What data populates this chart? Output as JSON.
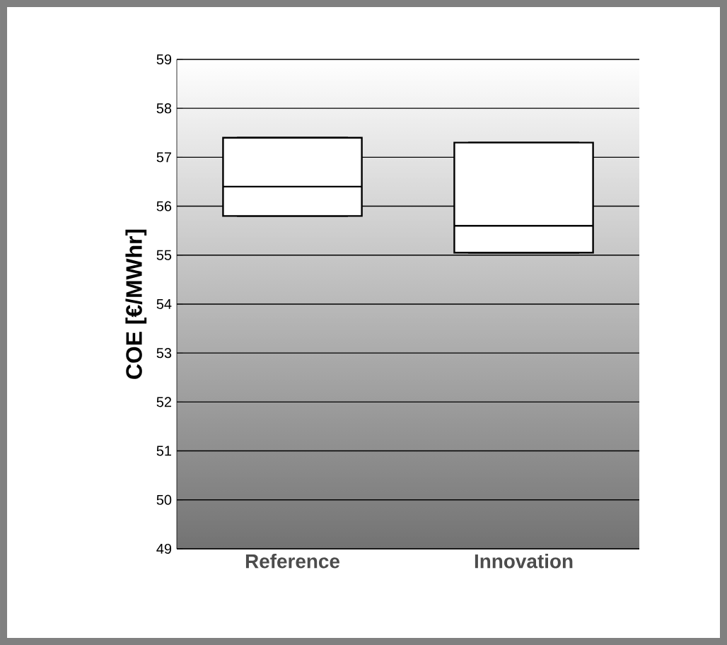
{
  "chart_data": {
    "type": "box",
    "ylabel": "COE [€/MWhr]",
    "categories": [
      "Reference",
      "Innovation"
    ],
    "boxes": [
      {
        "low": 55.8,
        "q1": 55.8,
        "median": 56.4,
        "q3": 57.4,
        "high": 57.4
      },
      {
        "low": 55.05,
        "q1": 55.05,
        "median": 55.6,
        "q3": 57.3,
        "high": 57.3
      }
    ],
    "color": "#ffffff",
    "ylim": [
      49,
      59
    ],
    "yticks": [
      49,
      50,
      51,
      52,
      53,
      54,
      55,
      56,
      57,
      58,
      59
    ],
    "grid": "y"
  }
}
